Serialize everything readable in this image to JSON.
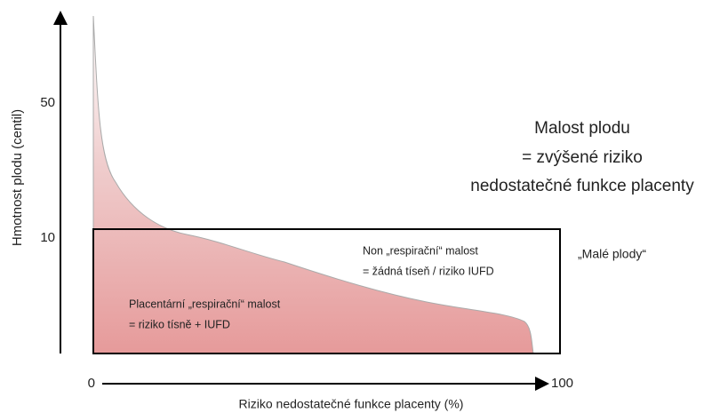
{
  "y_axis": {
    "label": "Hmotnost plodu (centil)",
    "ticks": [
      "50",
      "10"
    ]
  },
  "x_axis": {
    "label": "Riziko nedostatečné funkce placenty (%)",
    "start": "0",
    "end": "100"
  },
  "headline": [
    "Malost plodu",
    "= zvýšené riziko",
    "nedostatečné funkce placenty"
  ],
  "box_right": [
    "Non „respirační“ malost",
    "= žádná tíseň / riziko IUFD"
  ],
  "box_left": [
    "Placentární „respirační“ malost",
    "= riziko tísně + IUFD"
  ],
  "side_label": "„Malé plody“"
}
